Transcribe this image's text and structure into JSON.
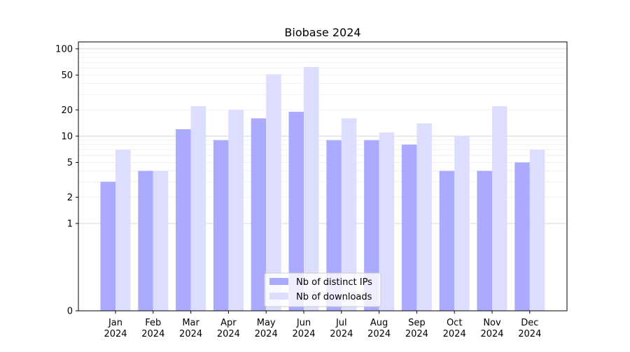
{
  "chart_data": {
    "type": "bar",
    "title": "Biobase 2024",
    "xlabel": "",
    "ylabel": "",
    "yscale": "symlog",
    "ylim": [
      0,
      120
    ],
    "yticks": [
      0,
      1,
      2,
      5,
      10,
      20,
      50,
      100
    ],
    "ytick_labels": [
      "0",
      "1",
      "2",
      "5",
      "10",
      "20",
      "50",
      "100"
    ],
    "grid": true,
    "legend": "bottom-center",
    "categories": [
      "Jan\n2024",
      "Feb\n2024",
      "Mar\n2024",
      "Apr\n2024",
      "May\n2024",
      "Jun\n2024",
      "Jul\n2024",
      "Aug\n2024",
      "Sep\n2024",
      "Oct\n2024",
      "Nov\n2024",
      "Dec\n2024"
    ],
    "series": [
      {
        "name": "Nb of distinct IPs",
        "color": "#aaaaff",
        "values": [
          3,
          4,
          12,
          9,
          16,
          19,
          9,
          9,
          8,
          4,
          4,
          5
        ]
      },
      {
        "name": "Nb of downloads",
        "color": "#ddddff",
        "values": [
          7,
          4,
          22,
          20,
          51,
          62,
          16,
          11,
          14,
          10,
          22,
          7
        ]
      }
    ]
  }
}
